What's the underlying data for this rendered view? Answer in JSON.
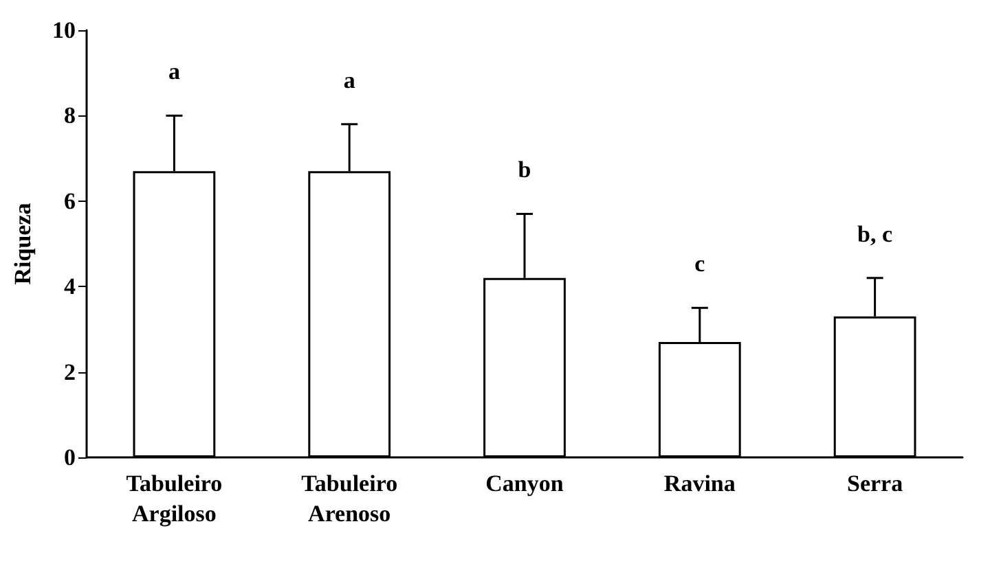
{
  "chart_data": {
    "type": "bar",
    "ylabel": "Riqueza",
    "categories": [
      "Tabuleiro Argiloso",
      "Tabuleiro Arenoso",
      "Canyon",
      "Ravina",
      "Serra"
    ],
    "series": [
      {
        "color": "#ffffff",
        "values": [
          6.7,
          6.7,
          4.2,
          2.7,
          3.3
        ],
        "errors": [
          [
            6.7,
            8.0
          ],
          [
            6.7,
            7.8
          ],
          [
            4.2,
            5.7
          ],
          [
            2.7,
            3.5
          ],
          [
            3.3,
            4.2
          ]
        ]
      }
    ],
    "ylim": [
      0,
      10
    ],
    "yticks": [
      0,
      2,
      4,
      6,
      8,
      10
    ],
    "grid": false,
    "annotations": [
      "a",
      "a",
      "b",
      "c",
      "b, c"
    ]
  }
}
